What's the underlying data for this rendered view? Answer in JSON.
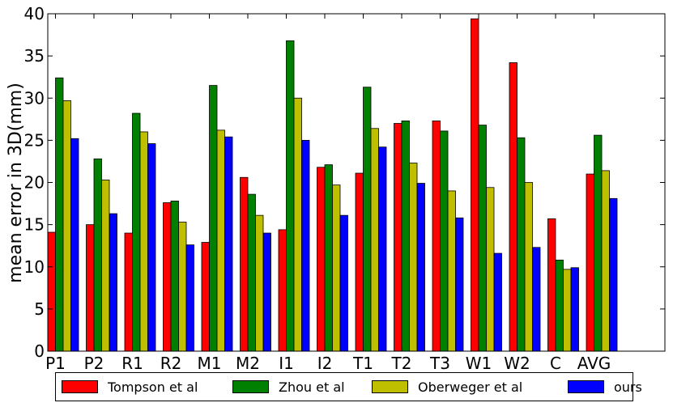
{
  "chart_data": {
    "type": "bar",
    "title": "",
    "xlabel": "",
    "ylabel": "mean error in 3D(mm)",
    "ylim": [
      0,
      40
    ],
    "yticks": [
      0,
      5,
      10,
      15,
      20,
      25,
      30,
      35,
      40
    ],
    "categories": [
      "P1",
      "P2",
      "R1",
      "R2",
      "M1",
      "M2",
      "I1",
      "I2",
      "T1",
      "T2",
      "T3",
      "W1",
      "W2",
      "C",
      "AVG"
    ],
    "series": [
      {
        "name": "Tompson et al",
        "color": "#ff0000",
        "values": [
          14.1,
          15.0,
          14.0,
          17.6,
          12.9,
          20.6,
          14.4,
          21.8,
          21.1,
          27.0,
          27.3,
          39.4,
          34.2,
          15.7,
          21.0
        ]
      },
      {
        "name": "Zhou et al",
        "color": "#008000",
        "values": [
          32.4,
          22.8,
          28.2,
          17.8,
          31.5,
          18.6,
          36.8,
          22.1,
          31.3,
          27.3,
          26.1,
          26.8,
          25.3,
          10.8,
          25.6
        ]
      },
      {
        "name": "Oberweger et al",
        "color": "#bfbf00",
        "values": [
          29.7,
          20.3,
          26.0,
          15.3,
          26.2,
          16.1,
          30.0,
          19.7,
          26.4,
          22.3,
          19.0,
          19.4,
          20.0,
          9.7,
          21.4
        ]
      },
      {
        "name": "ours",
        "color": "#0000ff",
        "values": [
          25.2,
          16.3,
          24.6,
          12.6,
          25.4,
          14.0,
          25.0,
          16.1,
          24.2,
          19.9,
          15.8,
          11.6,
          12.3,
          9.9,
          18.1
        ]
      }
    ],
    "legend": "bottom",
    "grid": false
  }
}
